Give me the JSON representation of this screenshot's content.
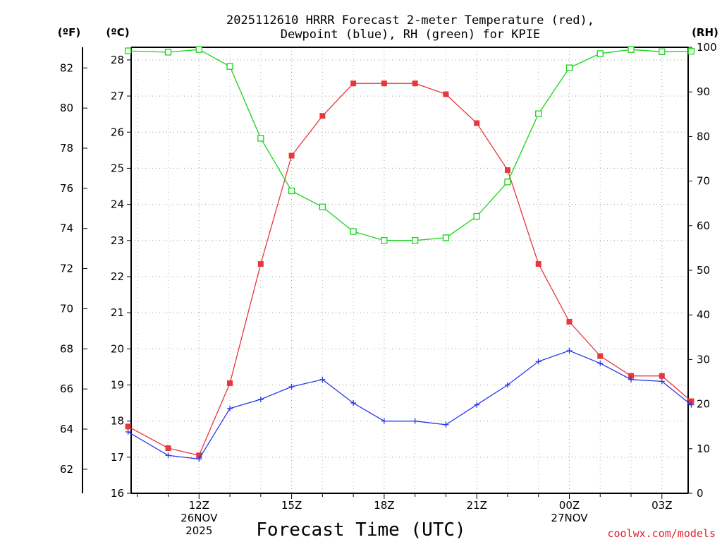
{
  "chart_data": {
    "type": "line",
    "title_line1": "2025112610 HRRR Forecast 2-meter Temperature (red),",
    "title_line2": "Dewpoint (blue), RH (green) for KPIE",
    "unit_f": "(ºF)",
    "unit_c": "(ºC)",
    "unit_rh": "(RH)",
    "xlabel": "Forecast Time (UTC)",
    "credit": "coolwx.com/models",
    "x": [
      9.7,
      11,
      12,
      13,
      14,
      15,
      16,
      17,
      18,
      19,
      20,
      21,
      22,
      23,
      24,
      25,
      26,
      27,
      27.95
    ],
    "xlim": [
      9.8,
      27.85
    ],
    "ylim_c": [
      16,
      28.35
    ],
    "ylim_rh": [
      0,
      100
    ],
    "yticks_c": [
      16,
      17,
      18,
      19,
      20,
      21,
      22,
      23,
      24,
      25,
      26,
      27,
      28
    ],
    "yticks_f": [
      62,
      64,
      66,
      68,
      70,
      72,
      74,
      76,
      78,
      80,
      82
    ],
    "yticks_rh": [
      0,
      10,
      20,
      30,
      40,
      50,
      60,
      70,
      80,
      90,
      100
    ],
    "xticks": [
      {
        "x": 12,
        "lines": [
          "12Z",
          "26NOV",
          "2025"
        ]
      },
      {
        "x": 15,
        "lines": [
          "15Z"
        ]
      },
      {
        "x": 18,
        "lines": [
          "18Z"
        ]
      },
      {
        "x": 21,
        "lines": [
          "21Z"
        ]
      },
      {
        "x": 24,
        "lines": [
          "00Z",
          "27NOV"
        ]
      },
      {
        "x": 27,
        "lines": [
          "03Z"
        ]
      }
    ],
    "series": [
      {
        "name": "Temperature",
        "axis": "c",
        "color": "#e8363c",
        "marker": "filled-square",
        "values": [
          17.85,
          17.25,
          17.05,
          19.05,
          22.35,
          25.35,
          26.45,
          27.35,
          27.35,
          27.35,
          27.05,
          26.25,
          24.95,
          22.35,
          20.75,
          19.8,
          19.25,
          19.25,
          18.55
        ]
      },
      {
        "name": "Dewpoint",
        "axis": "c",
        "color": "#2838e8",
        "marker": "plus",
        "values": [
          17.7,
          17.05,
          16.95,
          18.35,
          18.6,
          18.95,
          19.15,
          18.5,
          18.0,
          18.0,
          17.9,
          18.45,
          19.0,
          19.65,
          19.95,
          19.6,
          19.15,
          19.1,
          18.45
        ]
      },
      {
        "name": "RH",
        "axis": "rh",
        "color": "#18d418",
        "marker": "open-square",
        "values": [
          99.2,
          98.9,
          99.5,
          95.7,
          79.6,
          67.8,
          64.2,
          58.7,
          56.7,
          56.7,
          57.3,
          62.1,
          69.8,
          85.1,
          95.4,
          98.6,
          99.5,
          99.0,
          99.1
        ]
      }
    ]
  }
}
